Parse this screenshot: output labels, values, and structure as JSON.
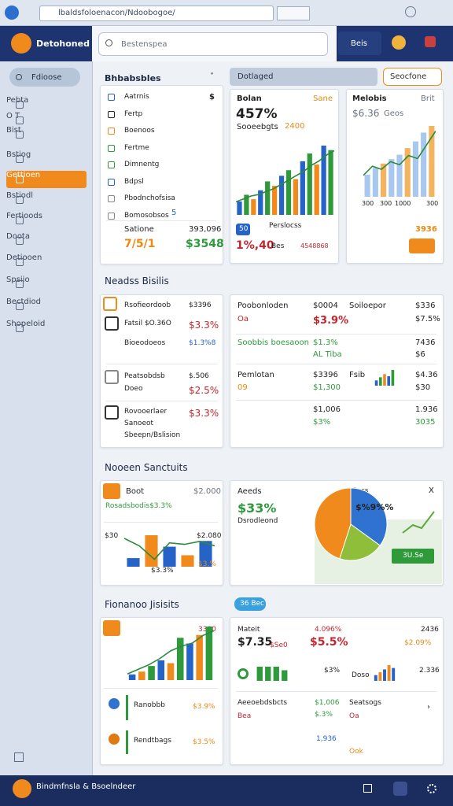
{
  "browser": {
    "url": "lbaldsfoloenacon/Ndoobogoe/"
  },
  "header": {
    "brand": "Detohoned",
    "search": "Bestenspea",
    "button": "Beis"
  },
  "sidebar": {
    "top": "Fdioose",
    "items": [
      "Pebta",
      "O  T",
      "Bist",
      "Bstiog",
      "Gettioen",
      "Bstiodl",
      "Fertioods",
      "Doota",
      "Detiooen",
      "Spsiio",
      "Bectdiod",
      "Shopeloid"
    ],
    "active": 4
  },
  "footer": {
    "text": "Bindmfnsla & Bsoelndeer"
  },
  "filters": {
    "pill": "Dotlaged",
    "button": "Seocfone"
  },
  "list_card": {
    "title": "Bhbabsbles",
    "items": [
      "Aatrnis",
      "Fertp",
      "Boenoos",
      "Fertme",
      "Dimnentg",
      "Bdpsl",
      "Pbodnchofsisa",
      "Bomosobsos"
    ],
    "item_marks": [
      "$",
      "5"
    ],
    "totals": [
      "Satione",
      "393,096",
      "7/5/1",
      "$3548"
    ]
  },
  "card_sales": {
    "title": "Bolan",
    "tag": "Sane",
    "value": "457%",
    "sub": "Sooeebgts",
    "sub_value": "2400",
    "badge": "50",
    "legend": "Perslocss",
    "foot": [
      "1%,40",
      "Bes",
      "4548868"
    ],
    "chart": {
      "values": [
        12,
        18,
        14,
        22,
        30,
        26,
        35,
        40,
        32,
        48,
        55,
        45,
        62,
        58
      ],
      "colors": [
        "#2563c9",
        "#2e9a3c",
        "#f08a1c"
      ],
      "line": [
        20,
        24,
        28,
        30,
        34,
        38,
        44,
        50,
        56,
        62,
        70,
        76,
        84,
        90
      ]
    }
  },
  "card_metrics": {
    "title": "Melobis",
    "tag": "Brit",
    "value": "$6.36",
    "sub": "Geos",
    "xlabels": [
      "300",
      "300",
      "1000",
      "300"
    ],
    "foot": "3936",
    "chart": {
      "values": [
        20,
        26,
        30,
        34,
        38,
        44,
        50,
        58,
        64
      ],
      "colors": [
        "#a9c8ef",
        "#a9c8ef",
        "#f3b35f"
      ],
      "line": [
        30,
        42,
        38,
        48,
        44,
        56,
        52,
        70,
        88
      ]
    }
  },
  "section1": "Neadss Bisilis",
  "card_list2": {
    "rows": [
      [
        "Rsofieordoob",
        "$3396"
      ],
      [
        "Fatsil $O.36O",
        "$3.3%"
      ],
      [
        "Bioeodoeos",
        "$1.3%8"
      ],
      [
        "Peatsobdsb",
        "$.506"
      ],
      [
        "Doeo",
        "$2.5%"
      ],
      [
        "Rovooerlaer",
        "$3.3%"
      ],
      [
        "Sanoeot",
        ""
      ],
      [
        "Sbeepn/Bslision",
        ""
      ]
    ]
  },
  "card_table": {
    "rows": [
      [
        "Poobonloden",
        "$0004",
        "Soiloepor",
        "$336"
      ],
      [
        "Oa",
        "$3.9%",
        "",
        "$7.5%"
      ],
      [
        "Soobbis boesaoon",
        "$1.3%",
        "",
        "7436"
      ],
      [
        "",
        "AL Tiba",
        "",
        "$6"
      ],
      [
        "Pemlotan",
        "$3396",
        "Fsib",
        "$4.36"
      ],
      [
        "09",
        "$1,300",
        "",
        "$30"
      ],
      [
        "",
        "$1,006",
        "",
        "1.936"
      ],
      [
        "",
        "$3%",
        "",
        "3035"
      ]
    ],
    "chart": {
      "values": [
        10,
        16,
        22,
        18,
        30
      ],
      "colors": [
        "#2563c9",
        "#2e9a3c",
        "#f08a1c"
      ]
    }
  },
  "section2": "Nooeen Sanctuits",
  "card_trend": {
    "title": "Boot",
    "tag": "$2.000",
    "sub": "Rosadsbodis$3.3%",
    "left": "$30",
    "right": "$2.080",
    "low": "$3.3%",
    "end": "$3.%",
    "chart": {
      "values": [
        6,
        22,
        14,
        8,
        18
      ],
      "colors": [
        "#2563c9",
        "#f08a1c"
      ],
      "line": [
        40,
        30,
        12,
        34,
        32,
        36,
        30
      ]
    }
  },
  "card_share": {
    "title": "Aeeds",
    "value": "$33%",
    "sub": "Dsrodleond",
    "label": "Soss",
    "pie_label": "$%9%%",
    "close": "X",
    "button": "3U.Se",
    "pie": {
      "values": [
        35,
        20,
        45
      ],
      "colors": [
        "#2f72d0",
        "#8fbf3a",
        "#f08a1c"
      ]
    }
  },
  "section3": "Fionanoo Jisisits",
  "section3_badge": "36 Bec",
  "card_fin": {
    "top": "3300",
    "rows": [
      [
        "Ranobbb",
        "$3.9%"
      ],
      [
        "Rendtbags",
        "$3.5%"
      ]
    ],
    "chart": {
      "values": [
        4,
        6,
        10,
        14,
        12,
        30,
        26,
        32,
        38
      ],
      "colors": [
        "#2563c9",
        "#f08a1c",
        "#2e9a3c"
      ],
      "line": [
        10,
        16,
        22,
        30,
        40,
        46,
        50,
        60,
        66
      ]
    }
  },
  "card_summary": {
    "cells": [
      "Mateit",
      "4.096%",
      "2436",
      "$7.35",
      "$Se0",
      "$5.5%",
      "$2.09%",
      "$3%",
      "Doso",
      "2.336",
      "Aeeoebdsbcts",
      "$1,006",
      "Seatsogs",
      "Bea",
      "$.3%",
      "Oa",
      "1,936",
      "Ook"
    ],
    "chart": {
      "values": [
        8,
        12,
        16,
        22,
        18
      ],
      "colors": [
        "#2563c9",
        "#f08a1c"
      ]
    },
    "bars": {
      "values": [
        16,
        16,
        16,
        12
      ],
      "colors": [
        "#2e9a3c"
      ]
    }
  }
}
